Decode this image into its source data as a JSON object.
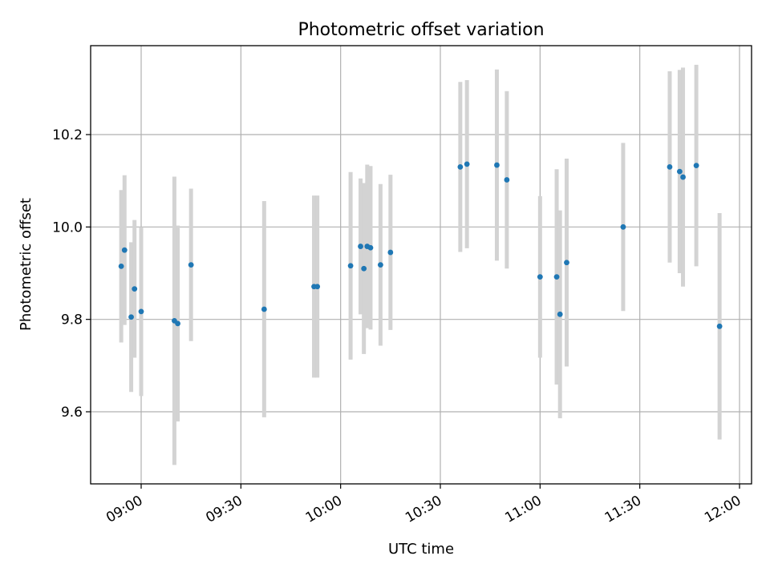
{
  "chart_data": {
    "type": "scatter",
    "title": "Photometric offset variation",
    "xlabel": "UTC time",
    "ylabel": "Photometric offset",
    "x_ticks": [
      "09:00",
      "09:30",
      "10:00",
      "10:30",
      "11:00",
      "11:30",
      "12:00"
    ],
    "y_ticks": [
      "9.6",
      "9.8",
      "10.0",
      "10.2"
    ],
    "xlim": [
      "08:45",
      "12:00"
    ],
    "ylim": [
      9.44,
      10.39
    ],
    "grid": true,
    "colors": {
      "points": "#1f77b4",
      "error_bars": "#d3d3d3",
      "grid": "#b0b0b0"
    },
    "series": [
      {
        "points": [
          {
            "x": "08:54",
            "y": 9.915,
            "err": 0.165
          },
          {
            "x": "08:55",
            "y": 9.95,
            "err": 0.162
          },
          {
            "x": "08:57",
            "y": 9.805,
            "err": 0.162
          },
          {
            "x": "08:58",
            "y": 9.866,
            "err": 0.149
          },
          {
            "x": "09:00",
            "y": 9.817,
            "err": 0.183
          },
          {
            "x": "09:10",
            "y": 9.797,
            "err": 0.312
          },
          {
            "x": "09:11",
            "y": 9.791,
            "err": 0.212
          },
          {
            "x": "09:15",
            "y": 9.918,
            "err": 0.165
          },
          {
            "x": "09:37",
            "y": 9.822,
            "err": 0.234
          },
          {
            "x": "09:52",
            "y": 9.871,
            "err": 0.197
          },
          {
            "x": "09:53",
            "y": 9.871,
            "err": 0.197
          },
          {
            "x": "10:03",
            "y": 9.916,
            "err": 0.203
          },
          {
            "x": "10:06",
            "y": 9.958,
            "err": 0.147
          },
          {
            "x": "10:07",
            "y": 9.91,
            "err": 0.185
          },
          {
            "x": "10:08",
            "y": 9.958,
            "err": 0.177
          },
          {
            "x": "10:09",
            "y": 9.955,
            "err": 0.177
          },
          {
            "x": "10:12",
            "y": 9.918,
            "err": 0.175
          },
          {
            "x": "10:15",
            "y": 9.945,
            "err": 0.168
          },
          {
            "x": "10:36",
            "y": 10.13,
            "err": 0.184
          },
          {
            "x": "10:38",
            "y": 10.136,
            "err": 0.182
          },
          {
            "x": "10:47",
            "y": 10.134,
            "err": 0.207
          },
          {
            "x": "10:50",
            "y": 10.102,
            "err": 0.192
          },
          {
            "x": "11:00",
            "y": 9.892,
            "err": 0.175
          },
          {
            "x": "11:05",
            "y": 9.892,
            "err": 0.233
          },
          {
            "x": "11:06",
            "y": 9.811,
            "err": 0.225
          },
          {
            "x": "11:08",
            "y": 9.923,
            "err": 0.225
          },
          {
            "x": "11:25",
            "y": 10.0,
            "err": 0.182
          },
          {
            "x": "11:39",
            "y": 10.13,
            "err": 0.207
          },
          {
            "x": "11:42",
            "y": 10.12,
            "err": 0.22
          },
          {
            "x": "11:43",
            "y": 10.108,
            "err": 0.237
          },
          {
            "x": "11:47",
            "y": 10.133,
            "err": 0.218
          },
          {
            "x": "11:54",
            "y": 9.785,
            "err": 0.245
          }
        ]
      }
    ]
  }
}
